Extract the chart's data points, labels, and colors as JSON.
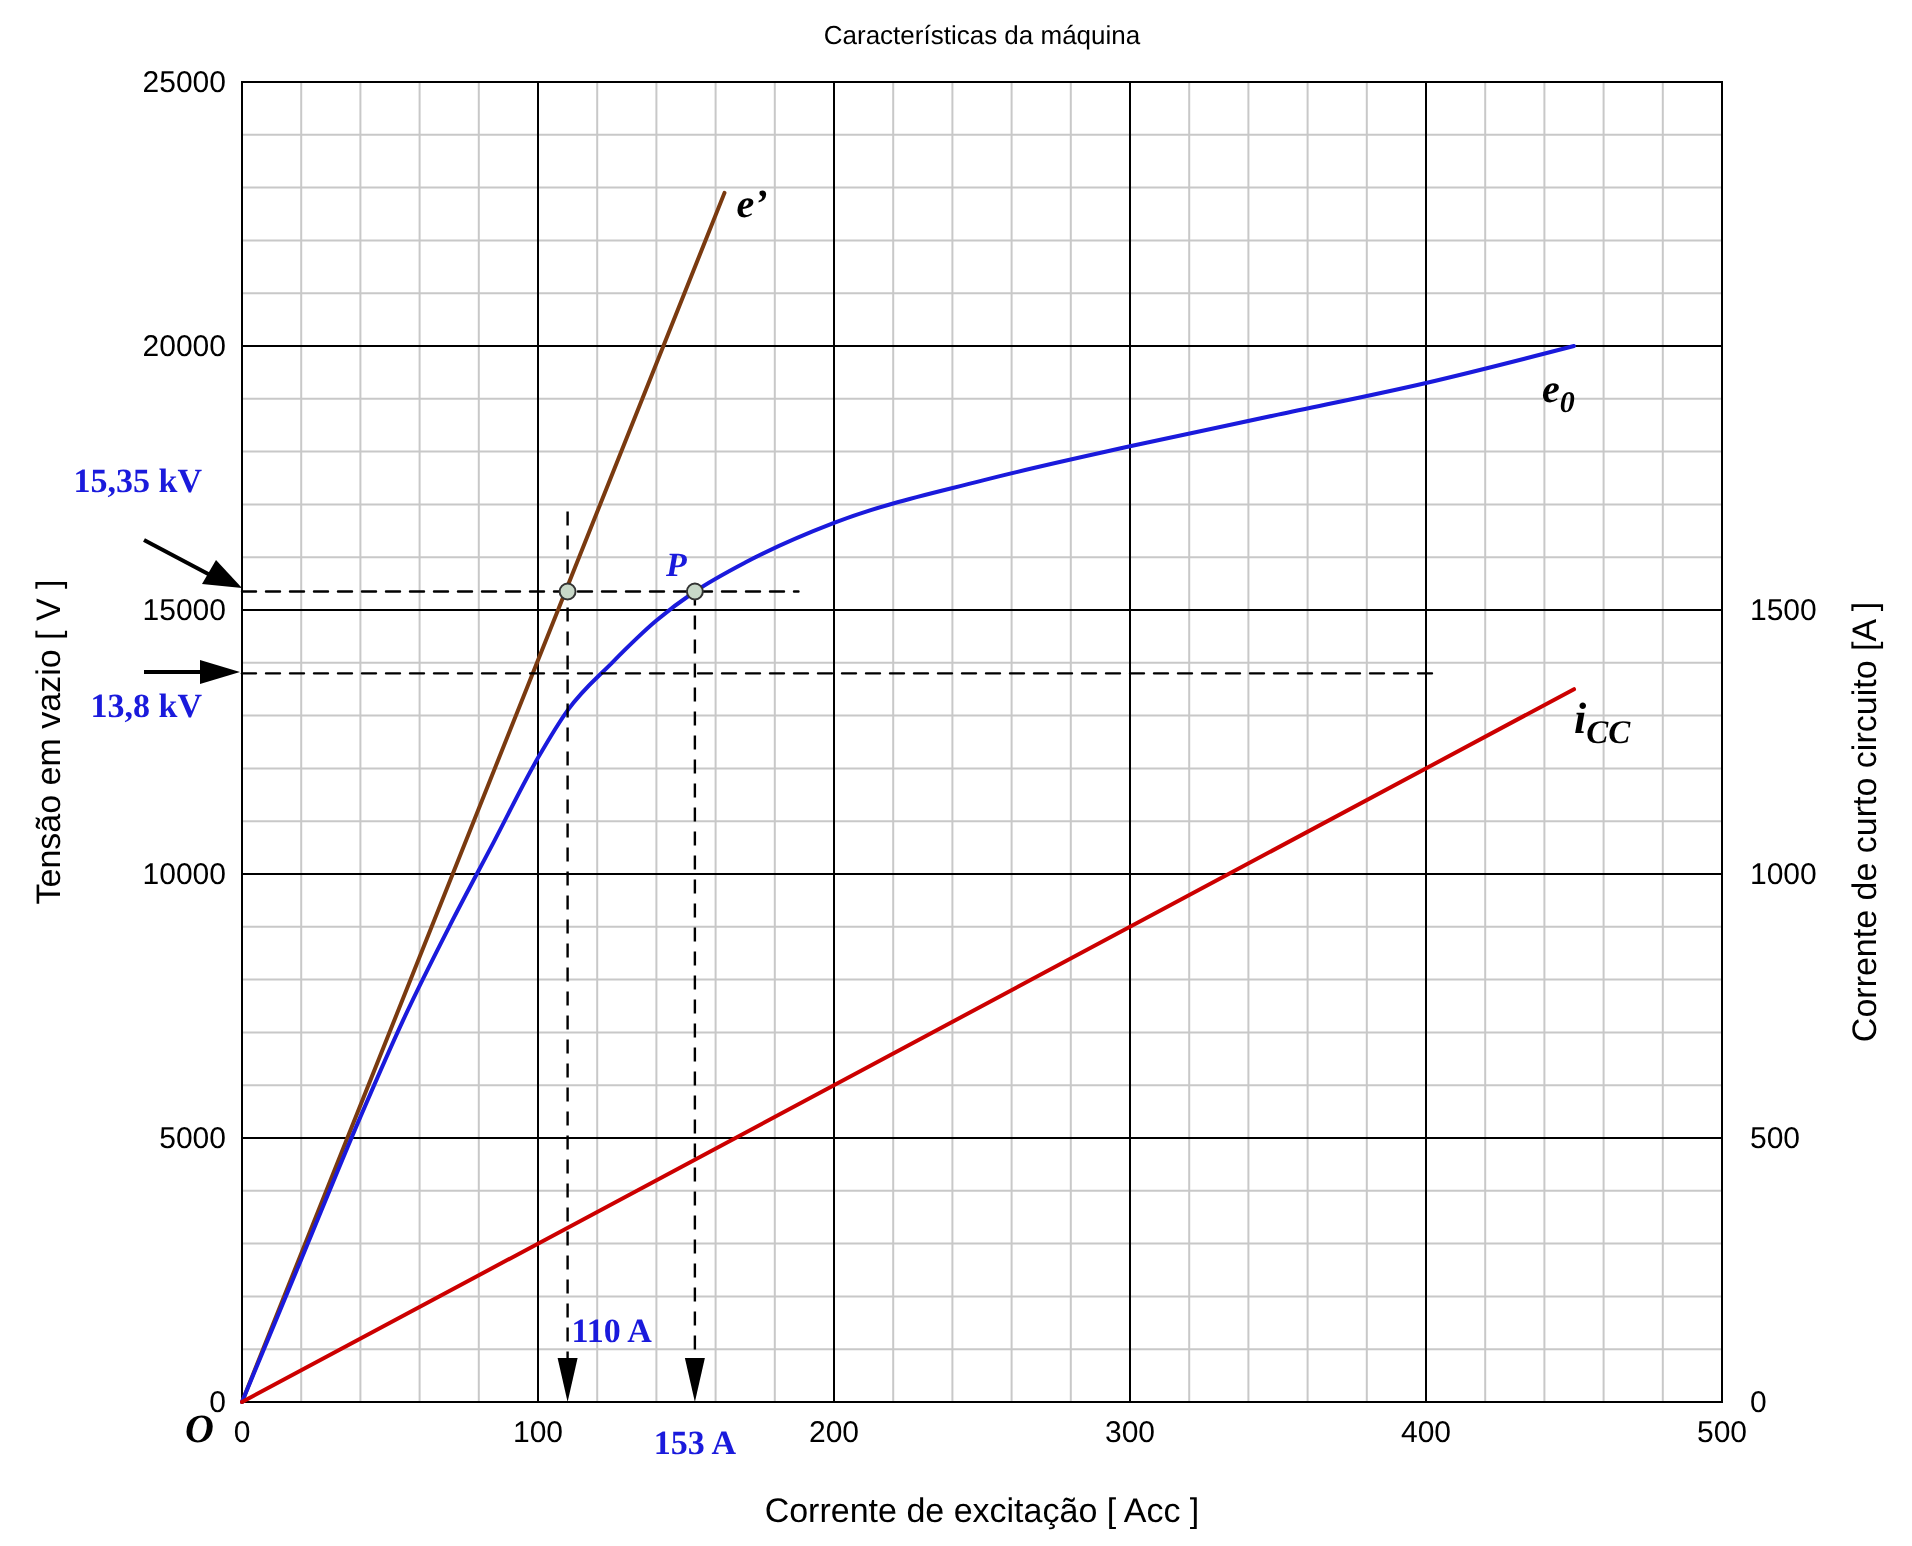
{
  "chart_data": {
    "type": "line",
    "title": "Características da máquina",
    "xlabel": "Corrente de excitação  [ Acc ]",
    "ylabel": "Tensão em vazio  [ V ]",
    "y2label": "Corrente de curto circuito  [A ]",
    "xlim": [
      0,
      500
    ],
    "xticks": [
      0,
      100,
      200,
      300,
      400,
      500
    ],
    "ylim": [
      0,
      25000
    ],
    "yticks": [
      0,
      5000,
      10000,
      15000,
      20000,
      25000
    ],
    "y2lim": [
      0,
      2500
    ],
    "y2ticks": [
      0,
      500,
      1000,
      1500
    ],
    "grid": true,
    "series": [
      {
        "color": "#7a3a10",
        "x": [
          0,
          163
        ],
        "values": [
          0,
          22900
        ]
      },
      {
        "color": "#1a1adc",
        "x": [
          0,
          20,
          40,
          55,
          70,
          85,
          100,
          110,
          125,
          140,
          153,
          170,
          200,
          250,
          300,
          350,
          400,
          450
        ],
        "values": [
          0,
          2700,
          5400,
          7300,
          9000,
          10600,
          12200,
          13100,
          14000,
          14800,
          15350,
          15900,
          16650,
          17450,
          18100,
          18700,
          19300,
          20000
        ]
      },
      {
        "color": "#cc0000",
        "axis": "y2",
        "x": [
          0,
          450
        ],
        "values": [
          0,
          1350
        ]
      },
      {
        "color": "#000000",
        "line_style": "dashed",
        "x": [
          0,
          188
        ],
        "values": [
          15350,
          15350
        ]
      },
      {
        "color": "#000000",
        "line_style": "dashed",
        "x": [
          0,
          405
        ],
        "values": [
          13800,
          13800
        ]
      },
      {
        "type": "scatter",
        "marker": "circle",
        "color": "#c8d8c8",
        "x": [
          110,
          153
        ],
        "values": [
          15350,
          15350
        ]
      }
    ],
    "annotations": [
      {
        "text": "e’",
        "x": 163,
        "y": 22900
      },
      {
        "text": "e$_{0}$",
        "x": 450,
        "y": 20000
      },
      {
        "text": "i$_{CC}$",
        "x": 450,
        "y": 13500
      },
      {
        "text": "P",
        "x": 153,
        "y": 15350
      },
      {
        "text": "15,35 kV",
        "x": 0,
        "y": 15350
      },
      {
        "text": "13,8 kV",
        "x": 0,
        "y": 13800
      },
      "110 A",
      "153 A",
      {
        "text": "O",
        "x": 0,
        "y": 0
      }
    ]
  }
}
